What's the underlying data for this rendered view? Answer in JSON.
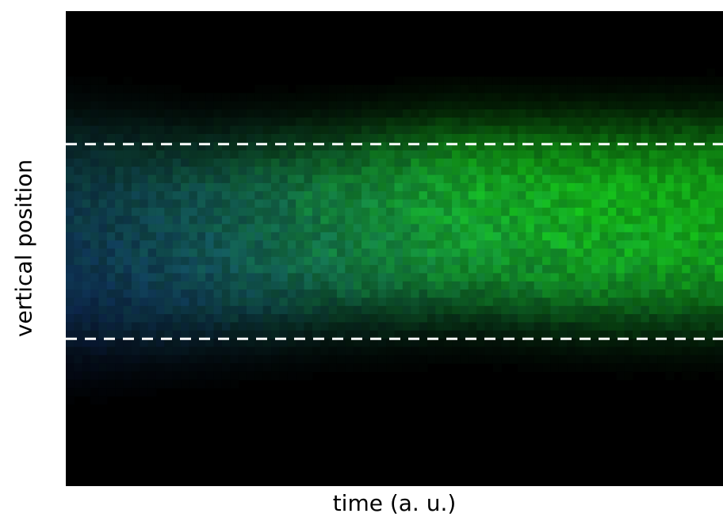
{
  "chart_data": {
    "type": "heatmap",
    "title": "",
    "xlabel": "time (a. u.)",
    "ylabel": "vertical position",
    "x_ticks_labels": [],
    "y_ticks_labels": [],
    "grid": false,
    "legend": "none",
    "colormap": {
      "background": "#000000",
      "early": "#1f4fd0",
      "late": "#19e01f"
    },
    "band": {
      "upper_boundary": 0.72,
      "lower_boundary": 0.31,
      "boundary_style": "white dashed"
    },
    "description_series": [
      {
        "time": 0.0,
        "center": 0.52,
        "width": 0.5,
        "intensity": 0.45,
        "green_fraction": 0.25
      },
      {
        "time": 0.2,
        "center": 0.52,
        "width": 0.44,
        "intensity": 0.6,
        "green_fraction": 0.4
      },
      {
        "time": 0.4,
        "center": 0.54,
        "width": 0.42,
        "intensity": 0.7,
        "green_fraction": 0.65
      },
      {
        "time": 0.6,
        "center": 0.56,
        "width": 0.42,
        "intensity": 0.8,
        "green_fraction": 0.85
      },
      {
        "time": 0.8,
        "center": 0.55,
        "width": 0.43,
        "intensity": 0.8,
        "green_fraction": 0.95
      },
      {
        "time": 1.0,
        "center": 0.55,
        "width": 0.44,
        "intensity": 0.75,
        "green_fraction": 1.0
      }
    ]
  }
}
